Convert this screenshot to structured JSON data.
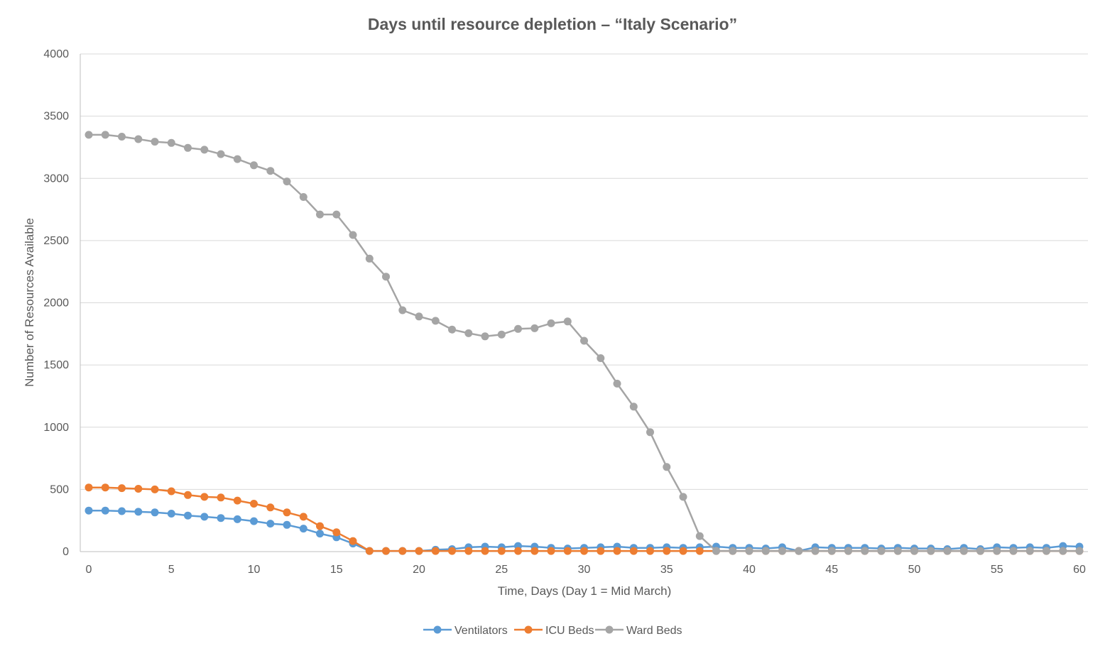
{
  "chart_data": {
    "type": "line",
    "title": "Days until resource depletion – “Italy Scenario”",
    "xlabel": "Time, Days (Day 1 = Mid March)",
    "ylabel": "Number of Resources Available",
    "xlim": [
      0,
      60
    ],
    "ylim": [
      0,
      4000
    ],
    "x_ticks": [
      0,
      5,
      10,
      15,
      20,
      25,
      30,
      35,
      40,
      45,
      50,
      55,
      60
    ],
    "y_ticks": [
      0,
      500,
      1000,
      1500,
      2000,
      2500,
      3000,
      3500,
      4000
    ],
    "grid": "horizontal",
    "legend_position": "bottom",
    "series": [
      {
        "name": "Ventilators",
        "color": "#5b9bd5",
        "x": [
          0,
          1,
          2,
          3,
          4,
          5,
          6,
          7,
          8,
          9,
          10,
          11,
          12,
          13,
          14,
          15,
          16,
          17,
          18,
          19,
          20,
          21,
          22,
          23,
          24,
          25,
          26,
          27,
          28,
          29,
          30,
          31,
          32,
          33,
          34,
          35,
          36,
          37,
          38,
          39,
          40,
          41,
          42,
          43,
          44,
          45,
          46,
          47,
          48,
          49,
          50,
          51,
          52,
          53,
          54,
          55,
          56,
          57,
          58,
          59,
          60
        ],
        "values": [
          330,
          330,
          325,
          320,
          315,
          305,
          290,
          280,
          270,
          260,
          245,
          225,
          215,
          185,
          145,
          115,
          65,
          5,
          5,
          5,
          5,
          15,
          20,
          35,
          40,
          35,
          45,
          40,
          30,
          25,
          30,
          35,
          40,
          30,
          30,
          35,
          30,
          35,
          40,
          30,
          30,
          25,
          35,
          5,
          35,
          30,
          30,
          30,
          25,
          30,
          25,
          25,
          20,
          30,
          20,
          35,
          30,
          35,
          30,
          45,
          40
        ]
      },
      {
        "name": "ICU Beds",
        "color": "#ed7d31",
        "x": [
          0,
          1,
          2,
          3,
          4,
          5,
          6,
          7,
          8,
          9,
          10,
          11,
          12,
          13,
          14,
          15,
          16,
          17,
          18,
          19,
          20,
          21,
          22,
          23,
          24,
          25,
          26,
          27,
          28,
          29,
          30,
          31,
          32,
          33,
          34,
          35,
          36,
          37,
          38,
          39,
          40,
          41,
          42,
          43,
          44,
          45,
          46,
          47,
          48,
          49,
          50,
          51,
          52,
          53,
          54,
          55,
          56,
          57,
          58,
          59,
          60
        ],
        "values": [
          515,
          515,
          510,
          505,
          500,
          485,
          455,
          440,
          435,
          410,
          385,
          355,
          315,
          280,
          205,
          155,
          85,
          5,
          5,
          5,
          5,
          5,
          5,
          5,
          5,
          5,
          5,
          5,
          5,
          5,
          5,
          5,
          5,
          5,
          5,
          5,
          5,
          5,
          5,
          5,
          5,
          5,
          5,
          5,
          5,
          5,
          5,
          5,
          5,
          5,
          5,
          5,
          5,
          5,
          5,
          5,
          5,
          5,
          5,
          5,
          5
        ]
      },
      {
        "name": "Ward Beds",
        "color": "#a5a5a5",
        "x": [
          0,
          1,
          2,
          3,
          4,
          5,
          6,
          7,
          8,
          9,
          10,
          11,
          12,
          13,
          14,
          15,
          16,
          17,
          18,
          19,
          20,
          21,
          22,
          23,
          24,
          25,
          26,
          27,
          28,
          29,
          30,
          31,
          32,
          33,
          34,
          35,
          36,
          37,
          38,
          39,
          40,
          41,
          42,
          43,
          44,
          45,
          46,
          47,
          48,
          49,
          50,
          51,
          52,
          53,
          54,
          55,
          56,
          57,
          58,
          59,
          60
        ],
        "values": [
          3350,
          3350,
          3335,
          3315,
          3295,
          3285,
          3245,
          3230,
          3195,
          3155,
          3105,
          3060,
          2975,
          2850,
          2710,
          2710,
          2545,
          2355,
          2210,
          1940,
          1890,
          1855,
          1785,
          1755,
          1730,
          1745,
          1790,
          1795,
          1835,
          1850,
          1695,
          1555,
          1350,
          1165,
          960,
          680,
          440,
          125,
          5,
          5,
          5,
          5,
          5,
          5,
          5,
          5,
          5,
          5,
          5,
          5,
          5,
          5,
          5,
          5,
          5,
          5,
          5,
          5,
          5,
          5,
          5
        ]
      }
    ]
  }
}
